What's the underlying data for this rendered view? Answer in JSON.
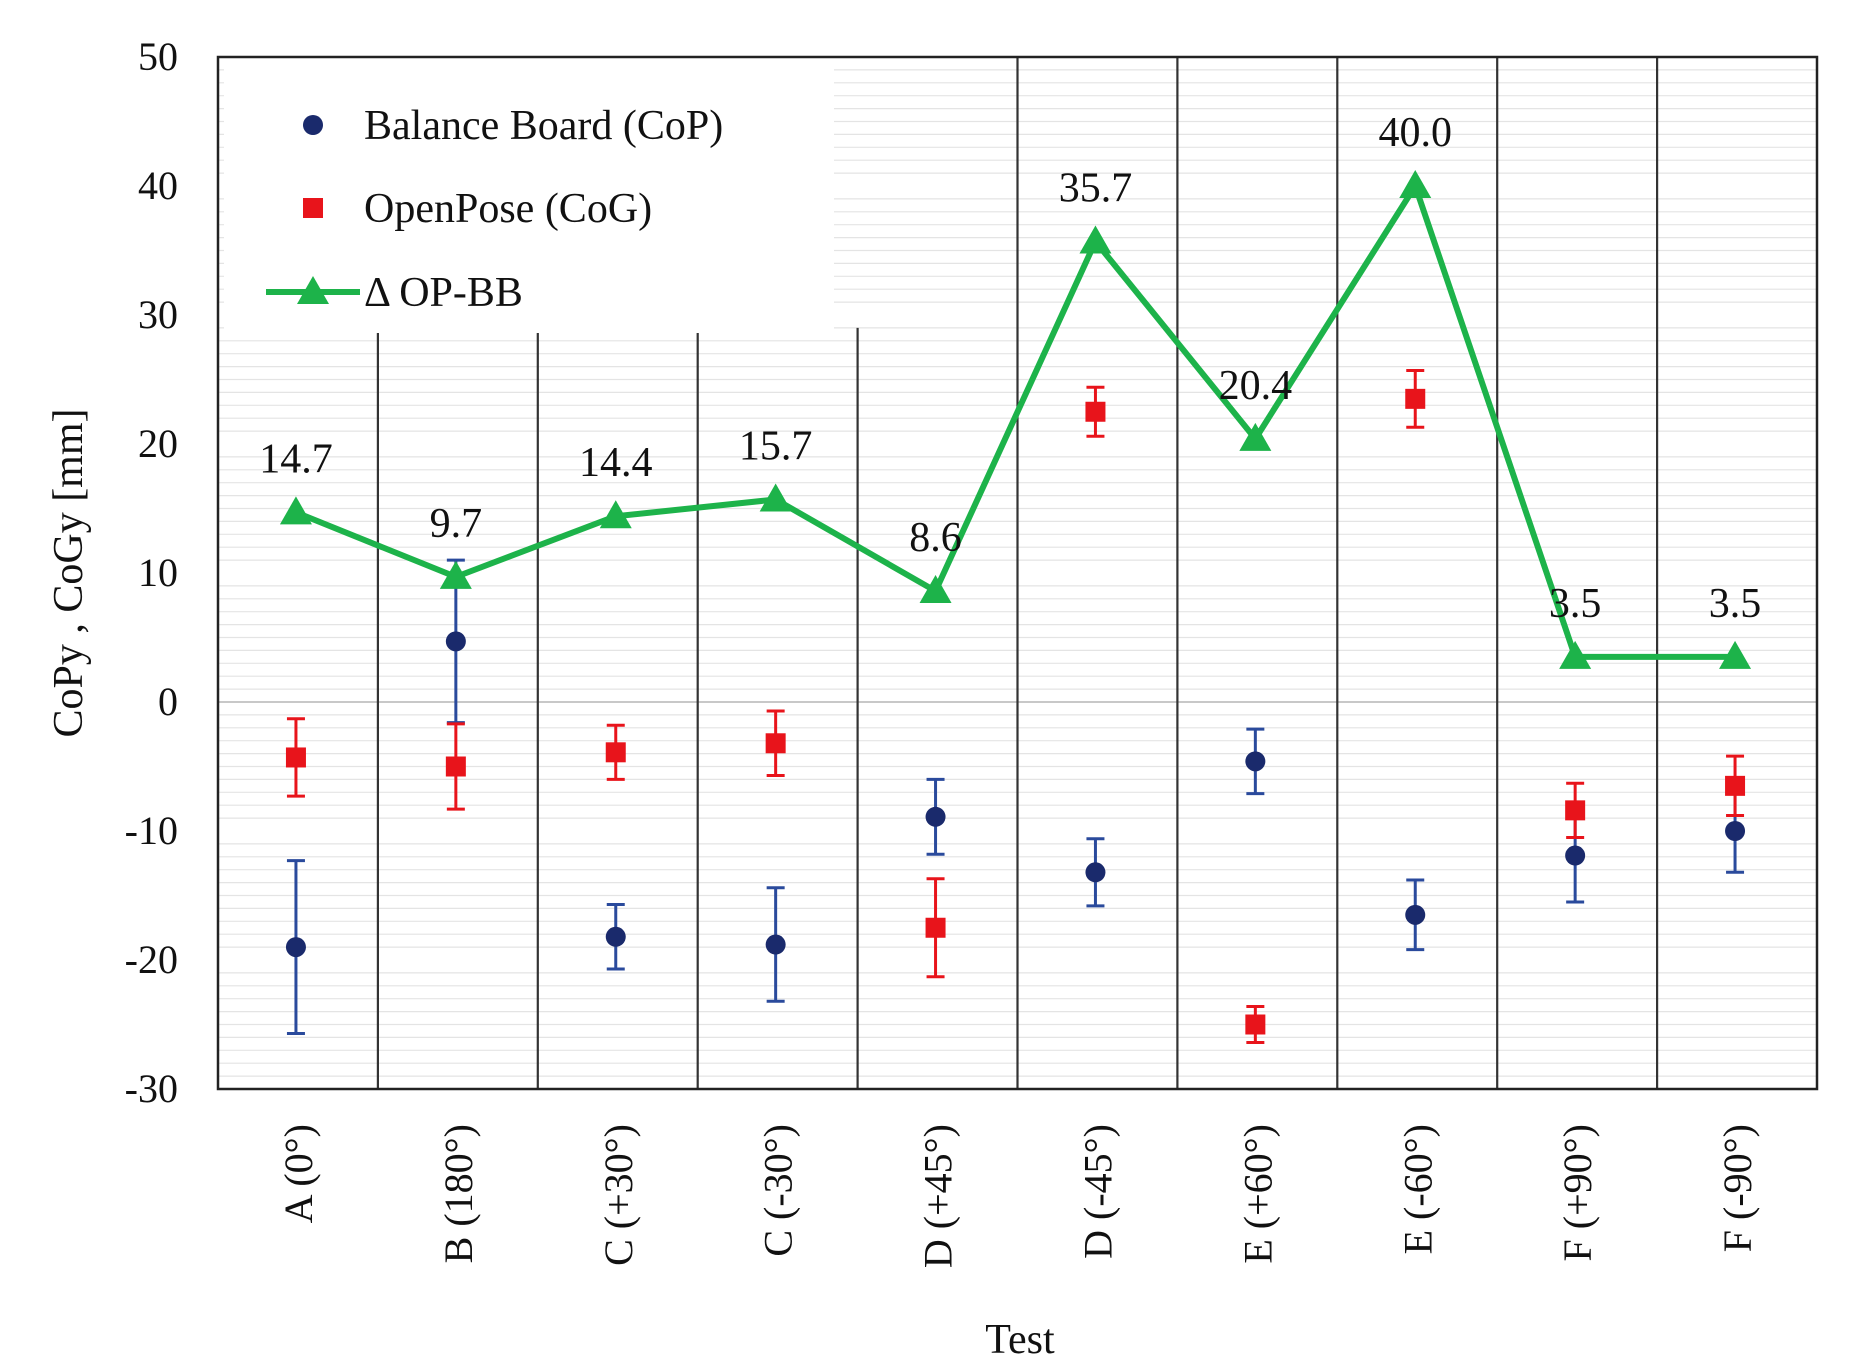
{
  "chart_data": {
    "type": "scatter-line",
    "title": "",
    "xlabel": "Test",
    "ylabel": "CoPy , CoGy [mm]",
    "ylim": [
      -30,
      50
    ],
    "yticks": [
      -30,
      -20,
      -10,
      0,
      10,
      20,
      30,
      40,
      50
    ],
    "grid": "horizontal minor lines, vertical separators between tests",
    "legend_position": "top-left",
    "categories": [
      "A (0°)",
      "B (180°)",
      "C (+30°)",
      "C (-30°)",
      "D (+45°)",
      "D (-45°)",
      "E (+60°)",
      "E (-60°)",
      "F (+90°)",
      "F (-90°)"
    ],
    "series": [
      {
        "name": "Balance Board (CoP)",
        "marker": "circle",
        "color": "#1a2a6c",
        "values": [
          -19.0,
          4.7,
          -18.2,
          -18.8,
          -8.9,
          -13.2,
          -4.6,
          -16.5,
          -11.9,
          -10.0
        ],
        "error": [
          6.7,
          6.3,
          2.5,
          4.4,
          2.9,
          2.6,
          2.5,
          2.7,
          3.6,
          3.2
        ]
      },
      {
        "name": "OpenPose (CoG)",
        "marker": "square",
        "color": "#e8141b",
        "values": [
          -4.3,
          -5.0,
          -3.9,
          -3.2,
          -17.5,
          22.5,
          -25.0,
          23.5,
          -8.4,
          -6.5
        ],
        "error": [
          3.0,
          3.3,
          2.1,
          2.5,
          3.8,
          1.9,
          1.4,
          2.2,
          2.1,
          2.3
        ]
      },
      {
        "name": "Δ OP-BB",
        "marker": "triangle",
        "color": "#1db34a",
        "values": [
          14.7,
          9.7,
          14.4,
          15.7,
          8.6,
          35.7,
          20.4,
          40.0,
          3.5,
          3.5
        ],
        "labels": [
          "14.7",
          "9.7",
          "14.4",
          "15.7",
          "8.6",
          "35.7",
          "20.4",
          "40.0",
          "3.5",
          "3.5"
        ]
      }
    ]
  }
}
